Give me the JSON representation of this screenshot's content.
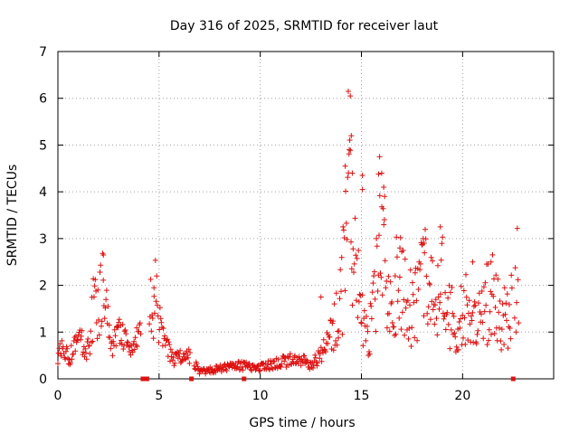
{
  "chart_data": {
    "type": "scatter",
    "title": "Day 316 of 2025, SRMTID for receiver laut",
    "xlabel": "GPS time / hours",
    "ylabel": "SRMTID / TECUs",
    "xlim": [
      0,
      24.5
    ],
    "ylim": [
      0,
      7
    ],
    "xticks": [
      0,
      5,
      10,
      15,
      20
    ],
    "yticks": [
      0,
      1,
      2,
      3,
      4,
      5,
      6,
      7
    ],
    "grid": true,
    "marker": "+",
    "color": "#dd1111",
    "series": [
      {
        "name": "SRMTID",
        "profile": [
          [
            0.0,
            0.5
          ],
          [
            0.2,
            0.65
          ],
          [
            0.4,
            0.55
          ],
          [
            0.6,
            0.4
          ],
          [
            0.8,
            0.9
          ],
          [
            1.0,
            0.75
          ],
          [
            1.2,
            0.8
          ],
          [
            1.4,
            0.6
          ],
          [
            1.6,
            0.7
          ],
          [
            1.8,
            1.8
          ],
          [
            2.0,
            1.3
          ],
          [
            2.2,
            2.3
          ],
          [
            2.4,
            1.5
          ],
          [
            2.6,
            0.7
          ],
          [
            2.8,
            0.8
          ],
          [
            3.0,
            1.0
          ],
          [
            3.2,
            0.9
          ],
          [
            3.4,
            0.8
          ],
          [
            3.6,
            0.5
          ],
          [
            3.8,
            0.9
          ],
          [
            4.0,
            0.85
          ],
          [
            4.6,
            1.6
          ],
          [
            4.8,
            1.8
          ],
          [
            5.0,
            1.1
          ],
          [
            5.2,
            0.9
          ],
          [
            5.4,
            0.7
          ],
          [
            5.6,
            0.5
          ],
          [
            5.8,
            0.4
          ],
          [
            6.0,
            0.5
          ],
          [
            6.2,
            0.4
          ],
          [
            6.5,
            0.5
          ],
          [
            6.8,
            0.3
          ],
          [
            7.0,
            0.15
          ],
          [
            7.5,
            0.18
          ],
          [
            8.0,
            0.22
          ],
          [
            8.5,
            0.25
          ],
          [
            9.0,
            0.3
          ],
          [
            9.5,
            0.25
          ],
          [
            10.0,
            0.25
          ],
          [
            10.5,
            0.3
          ],
          [
            11.0,
            0.35
          ],
          [
            11.5,
            0.4
          ],
          [
            12.0,
            0.4
          ],
          [
            12.5,
            0.3
          ],
          [
            13.0,
            0.5
          ],
          [
            13.3,
            0.9
          ],
          [
            13.6,
            1.0
          ],
          [
            13.9,
            1.5
          ],
          [
            14.1,
            2.2
          ],
          [
            14.3,
            3.8
          ],
          [
            14.5,
            3.0
          ],
          [
            14.7,
            2.5
          ],
          [
            14.9,
            1.8
          ],
          [
            15.1,
            1.3
          ],
          [
            15.3,
            1.0
          ],
          [
            15.5,
            1.3
          ],
          [
            15.7,
            1.8
          ],
          [
            15.9,
            3.0
          ],
          [
            16.1,
            2.4
          ],
          [
            16.3,
            2.0
          ],
          [
            16.6,
            1.8
          ],
          [
            16.9,
            2.2
          ],
          [
            17.2,
            1.8
          ],
          [
            17.5,
            1.5
          ],
          [
            17.8,
            1.6
          ],
          [
            18.1,
            2.2
          ],
          [
            18.4,
            1.8
          ],
          [
            18.7,
            1.5
          ],
          [
            19.0,
            2.0
          ],
          [
            19.3,
            1.4
          ],
          [
            19.6,
            1.2
          ],
          [
            19.9,
            1.3
          ],
          [
            20.2,
            1.5
          ],
          [
            20.5,
            1.4
          ],
          [
            20.8,
            1.3
          ],
          [
            21.1,
            1.5
          ],
          [
            21.4,
            1.8
          ],
          [
            21.7,
            1.5
          ],
          [
            22.0,
            1.3
          ],
          [
            22.3,
            1.2
          ],
          [
            22.6,
            2.0
          ],
          [
            22.8,
            2.3
          ]
        ],
        "peaks": [
          [
            2.25,
            2.65
          ],
          [
            4.75,
            1.95
          ],
          [
            14.35,
            6.15
          ],
          [
            14.45,
            6.05
          ],
          [
            14.5,
            5.2
          ],
          [
            14.4,
            4.9
          ],
          [
            14.55,
            4.4
          ],
          [
            14.2,
            4.55
          ],
          [
            15.05,
            4.35
          ],
          [
            15.05,
            4.05
          ],
          [
            15.9,
            4.75
          ],
          [
            16.0,
            4.4
          ],
          [
            15.85,
            4.38
          ],
          [
            16.1,
            4.1
          ],
          [
            16.15,
            3.9
          ],
          [
            18.9,
            3.25
          ],
          [
            18.1,
            2.9
          ],
          [
            13.0,
            1.75
          ],
          [
            16.9,
            2.8
          ],
          [
            20.5,
            2.5
          ],
          [
            21.4,
            2.5
          ]
        ],
        "zero_values_at": [
          4.2,
          4.4,
          6.6,
          9.2,
          22.5
        ]
      }
    ]
  }
}
